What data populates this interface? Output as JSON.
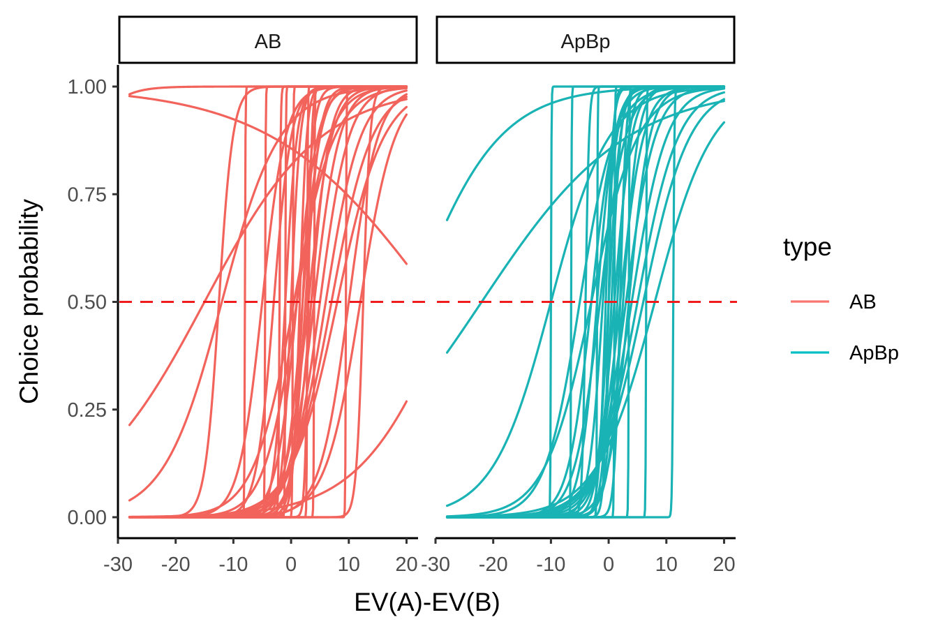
{
  "chart_data": {
    "type": "line",
    "xlabel": "EV(A)-EV(B)",
    "ylabel": "Choice probability",
    "xlim": [
      -28,
      20
    ],
    "ylim": [
      0,
      1
    ],
    "x_ticks": [
      -30,
      -20,
      -10,
      0,
      10,
      20
    ],
    "x_tick_labels": [
      "-30",
      "-20",
      "-10",
      "0",
      "10",
      "20"
    ],
    "y_ticks": [
      0,
      0.25,
      0.5,
      0.75,
      1.0
    ],
    "y_tick_labels": [
      "0.00",
      "0.25",
      "0.50",
      "0.75",
      "1.00"
    ],
    "reference_line": {
      "y": 0.5,
      "style": "dashed",
      "color": "#ee1c1c"
    },
    "grid": false,
    "legend": {
      "title": "type",
      "position": "right",
      "entries": [
        {
          "label": "AB",
          "color": "#F8766D"
        },
        {
          "label": "ApBp",
          "color": "#00BFC4"
        }
      ]
    },
    "panels": [
      {
        "label": "AB",
        "color": "#F2635C",
        "curve_model": "logistic: p = 1 / (1 + exp(-(x - midpoint) / scale))",
        "curves": [
          {
            "midpoint": 25,
            "scale": -14
          },
          {
            "midpoint": -15,
            "scale": 10
          },
          {
            "midpoint": -12,
            "scale": 5
          },
          {
            "midpoint": 28,
            "scale": 8
          },
          {
            "midpoint": 12,
            "scale": 3
          },
          {
            "midpoint": -12.5,
            "scale": 1.2
          },
          {
            "midpoint": -2,
            "scale": 0.1
          },
          {
            "midpoint": 3,
            "scale": 2
          },
          {
            "midpoint": 2,
            "scale": 1.5
          },
          {
            "midpoint": 1,
            "scale": 1.8
          },
          {
            "midpoint": 4,
            "scale": 2.2
          },
          {
            "midpoint": 5,
            "scale": 2.5
          },
          {
            "midpoint": -1,
            "scale": 1
          },
          {
            "midpoint": 0,
            "scale": 0.8
          },
          {
            "midpoint": 2.5,
            "scale": 1.2
          },
          {
            "midpoint": 3.5,
            "scale": 1.6
          },
          {
            "midpoint": 6,
            "scale": 3
          },
          {
            "midpoint": 7,
            "scale": 3.5
          },
          {
            "midpoint": 8,
            "scale": 4
          },
          {
            "midpoint": 1.5,
            "scale": 0.6
          },
          {
            "midpoint": -3,
            "scale": 1.5
          },
          {
            "midpoint": -5,
            "scale": 2
          },
          {
            "midpoint": 0.5,
            "scale": 3.5
          },
          {
            "midpoint": 3,
            "scale": 0.3
          },
          {
            "midpoint": -8,
            "scale": 0.05
          },
          {
            "midpoint": -4.5,
            "scale": 0.05
          },
          {
            "midpoint": -1,
            "scale": 0.05
          },
          {
            "midpoint": 4,
            "scale": 0.05
          },
          {
            "midpoint": 9.5,
            "scale": 0.05
          },
          {
            "midpoint": 2.8,
            "scale": 0.05
          },
          {
            "midpoint": 0.3,
            "scale": 0.05
          },
          {
            "midpoint": 12.5,
            "scale": 0.6
          },
          {
            "midpoint": 10,
            "scale": 2.5
          },
          {
            "midpoint": -40,
            "scale": 3
          },
          {
            "midpoint": 2,
            "scale": 0.9
          },
          {
            "midpoint": 1,
            "scale": 2.8
          }
        ]
      },
      {
        "label": "ApBp",
        "color": "#1AB3B5",
        "curve_model": "logistic: p = 1 / (1 + exp(-(x - midpoint) / scale))",
        "curves": [
          {
            "midpoint": -34,
            "scale": 7.5
          },
          {
            "midpoint": -22,
            "scale": 12.5
          },
          {
            "midpoint": -10,
            "scale": 5
          },
          {
            "midpoint": -5,
            "scale": 3
          },
          {
            "midpoint": -3,
            "scale": 2
          },
          {
            "midpoint": -2,
            "scale": 1.5
          },
          {
            "midpoint": -1,
            "scale": 1.2
          },
          {
            "midpoint": 0,
            "scale": 1
          },
          {
            "midpoint": 1,
            "scale": 1.5
          },
          {
            "midpoint": 2,
            "scale": 2
          },
          {
            "midpoint": 3,
            "scale": 2.5
          },
          {
            "midpoint": 4,
            "scale": 3
          },
          {
            "midpoint": 5,
            "scale": 3.5
          },
          {
            "midpoint": 6,
            "scale": 4
          },
          {
            "midpoint": 0.5,
            "scale": 0.8
          },
          {
            "midpoint": -0.5,
            "scale": 0.6
          },
          {
            "midpoint": 1.5,
            "scale": 1
          },
          {
            "midpoint": 2.5,
            "scale": 1.3
          },
          {
            "midpoint": -1.5,
            "scale": 2.2
          },
          {
            "midpoint": 3.5,
            "scale": 1.8
          },
          {
            "midpoint": -10,
            "scale": 0.05
          },
          {
            "midpoint": -6.5,
            "scale": 0.05
          },
          {
            "midpoint": -2,
            "scale": 0.05
          },
          {
            "midpoint": 1,
            "scale": 0.05
          },
          {
            "midpoint": 3.5,
            "scale": 0.05
          },
          {
            "midpoint": 6.5,
            "scale": 0.05
          },
          {
            "midpoint": 11.2,
            "scale": 0.1
          },
          {
            "midpoint": -4,
            "scale": 0.3
          },
          {
            "midpoint": 0,
            "scale": 0.4
          },
          {
            "midpoint": 2,
            "scale": 0.5
          },
          {
            "midpoint": 8,
            "scale": 5
          },
          {
            "midpoint": -3,
            "scale": 4
          }
        ]
      }
    ]
  }
}
